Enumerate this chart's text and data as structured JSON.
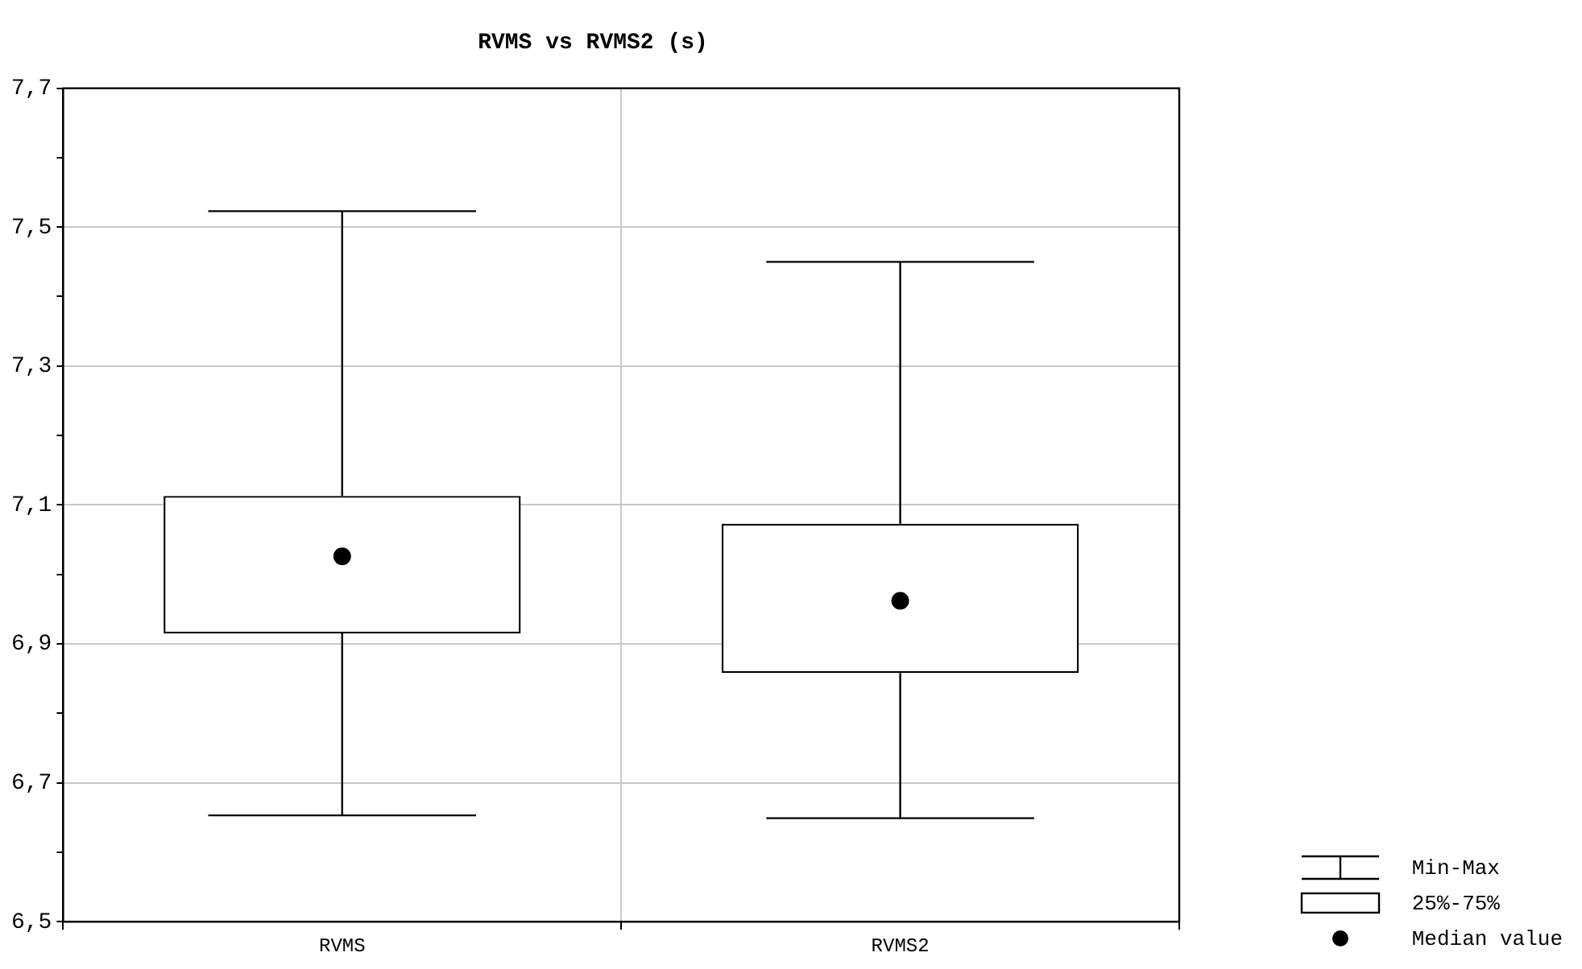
{
  "chart_data": {
    "type": "box",
    "title": "RVMS vs RVMS2 (s)",
    "categories": [
      "RVMS",
      "RVMS2"
    ],
    "boxes": [
      {
        "low": 6.653,
        "q1": 6.915,
        "median": 7.026,
        "q3": 7.113,
        "high": 7.523
      },
      {
        "low": 6.649,
        "q1": 6.858,
        "median": 6.962,
        "q3": 7.073,
        "high": 7.45
      }
    ],
    "color": "#000000",
    "ylim": [
      6.5,
      7.7
    ],
    "yticks": [
      {
        "value": 6.5,
        "label": "6,5"
      },
      {
        "value": 6.6,
        "label": null
      },
      {
        "value": 6.7,
        "label": "6,7"
      },
      {
        "value": 6.8,
        "label": null
      },
      {
        "value": 6.9,
        "label": "6,9"
      },
      {
        "value": 7.0,
        "label": null
      },
      {
        "value": 7.1,
        "label": "7,1"
      },
      {
        "value": 7.2,
        "label": null
      },
      {
        "value": 7.3,
        "label": "7,3"
      },
      {
        "value": 7.4,
        "label": null
      },
      {
        "value": 7.5,
        "label": "7,5"
      },
      {
        "value": 7.6,
        "label": null
      },
      {
        "value": 7.7,
        "label": "7,7"
      }
    ],
    "grid": true,
    "marker": "circle",
    "annotations": [
      "Min-Max",
      "25%-75%",
      "Median value"
    ]
  }
}
